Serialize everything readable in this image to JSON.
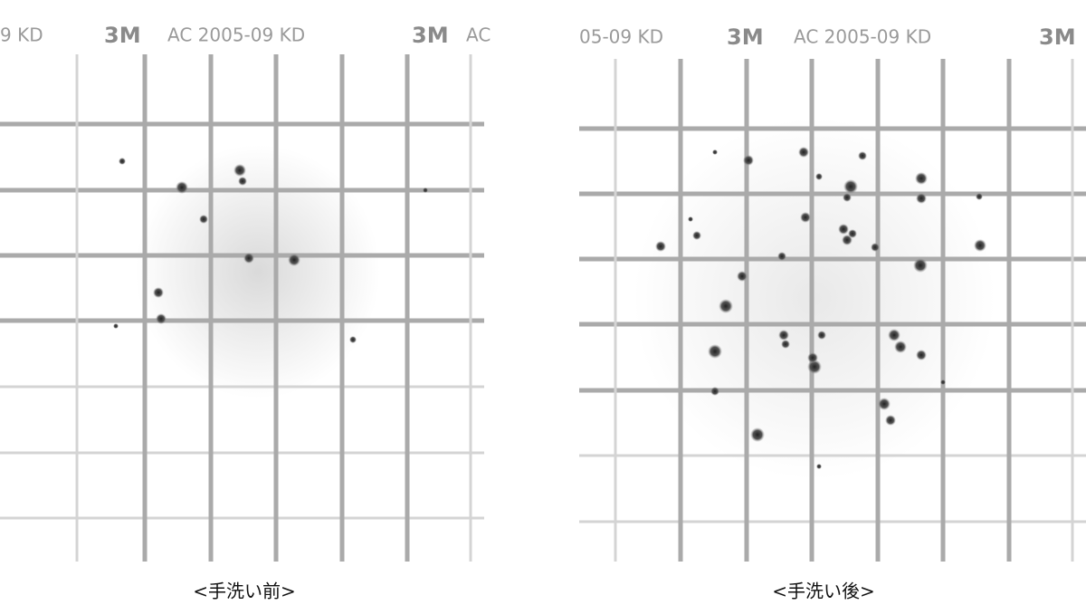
{
  "panels": [
    {
      "header": [
        "9 KD",
        "3M",
        "AC 2005-09 KD",
        "3M",
        "AC"
      ],
      "caption": "<手洗い前>"
    },
    {
      "header": [
        "05-09 KD",
        "3M",
        "AC 2005-09 KD",
        "3M"
      ],
      "caption": "<手洗い後>"
    }
  ]
}
